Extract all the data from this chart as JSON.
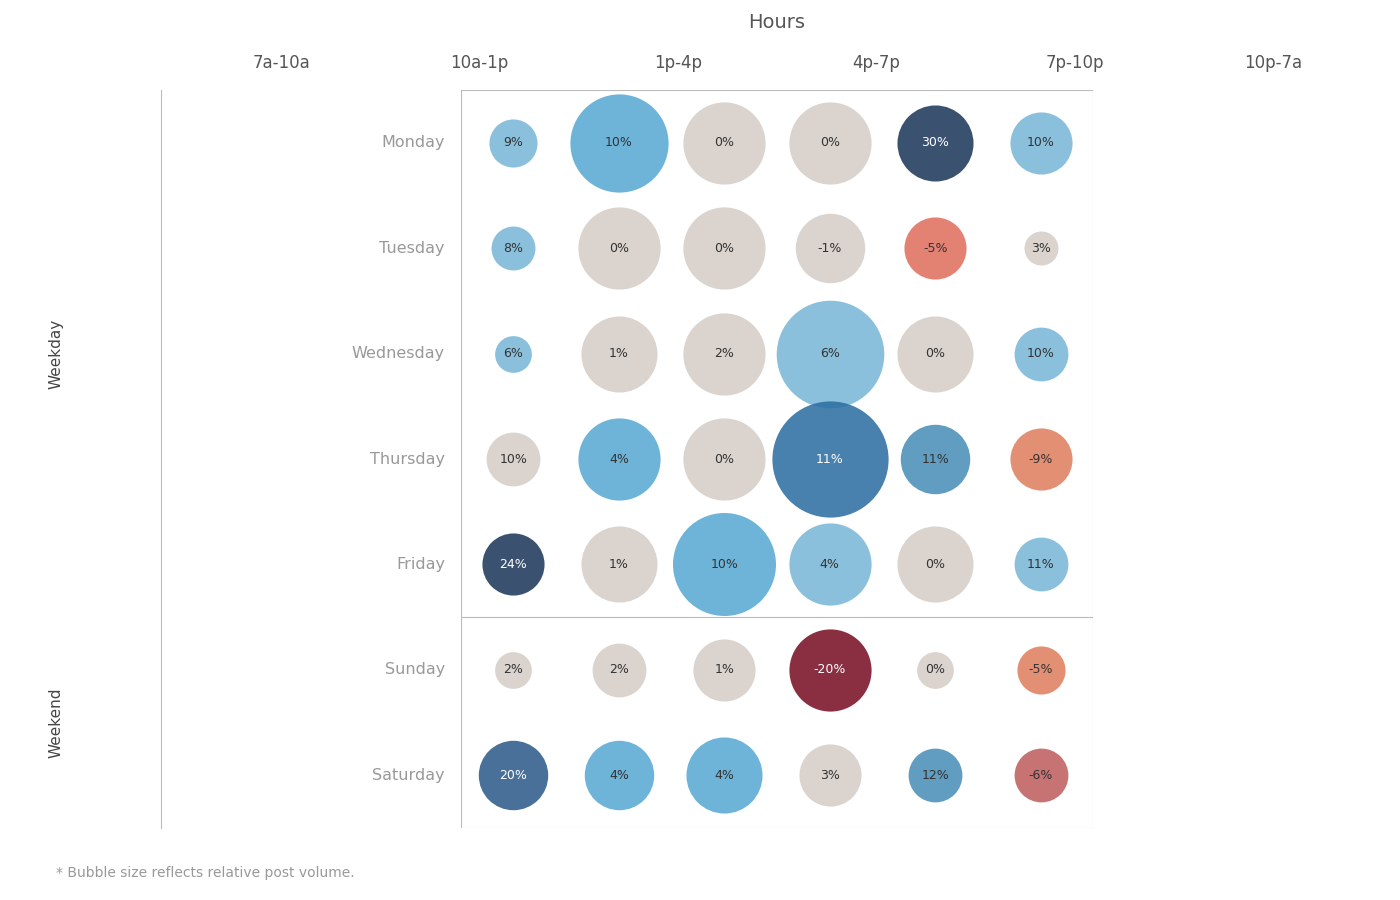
{
  "title": "Hours",
  "footnote": "* Bubble size reflects relative post volume.",
  "col_labels": [
    "7a-10a",
    "10a-1p",
    "1p-4p",
    "4p-7p",
    "7p-10p",
    "10p-7a"
  ],
  "row_labels": [
    "Monday",
    "Tuesday",
    "Wednesday",
    "Thursday",
    "Friday",
    "Sunday",
    "Saturday"
  ],
  "values": [
    [
      9,
      10,
      0,
      0,
      30,
      10
    ],
    [
      8,
      0,
      0,
      -1,
      -5,
      3
    ],
    [
      6,
      1,
      2,
      6,
      0,
      10
    ],
    [
      10,
      4,
      0,
      11,
      11,
      -9
    ],
    [
      24,
      1,
      10,
      4,
      0,
      11
    ],
    [
      2,
      2,
      1,
      -20,
      0,
      -5
    ],
    [
      20,
      4,
      4,
      3,
      12,
      -6
    ]
  ],
  "bubble_sizes": [
    [
      1200,
      5000,
      3500,
      3500,
      3000,
      2000
    ],
    [
      1000,
      3500,
      3500,
      2500,
      2000,
      600
    ],
    [
      700,
      3000,
      3500,
      6000,
      3000,
      1500
    ],
    [
      1500,
      3500,
      3500,
      7000,
      2500,
      2000
    ],
    [
      2000,
      3000,
      5500,
      3500,
      3000,
      1500
    ],
    [
      700,
      1500,
      2000,
      3500,
      700,
      1200
    ],
    [
      2500,
      2500,
      3000,
      2000,
      1500,
      1500
    ]
  ],
  "bg_color": "#ffffff",
  "grid_color": "#bbbbbb",
  "row_label_color": "#999999",
  "section_label_color": "#444444",
  "col_label_color": "#555555",
  "title_color": "#555555",
  "footnote_color": "#999999",
  "bubble_colors": [
    [
      "#7ab8d8",
      "#5aaad4",
      "#d5cdc8",
      "#d5cdc8",
      "#1e3a5c",
      "#7ab8d8"
    ],
    [
      "#7ab8d8",
      "#d5cdc8",
      "#d5cdc8",
      "#d5cdc8",
      "#e07060",
      "#d5cdc8"
    ],
    [
      "#7ab8d8",
      "#d5cdc8",
      "#d5cdc8",
      "#7ab8d8",
      "#d5cdc8",
      "#7ab8d8"
    ],
    [
      "#d5cdc8",
      "#5aaad4",
      "#d5cdc8",
      "#2e6fa3",
      "#4a90b8",
      "#e08060"
    ],
    [
      "#1e3a5c",
      "#d5cdc8",
      "#5aaad4",
      "#7ab8d8",
      "#d5cdc8",
      "#7ab8d8"
    ],
    [
      "#d5cdc8",
      "#d5cdc8",
      "#d5cdc8",
      "#7a1228",
      "#d5cdc8",
      "#e08060"
    ],
    [
      "#2e5c8a",
      "#5aaad4",
      "#5aaad4",
      "#d5cdc8",
      "#4a90b8",
      "#c06060"
    ]
  ],
  "dark_bubble_rows_cols": [
    [
      0,
      4
    ],
    [
      4,
      0
    ],
    [
      3,
      3
    ],
    [
      5,
      3
    ],
    [
      6,
      0
    ]
  ],
  "weekday_sep_after": 4,
  "n_weekday_rows": 5,
  "n_weekend_rows": 2
}
